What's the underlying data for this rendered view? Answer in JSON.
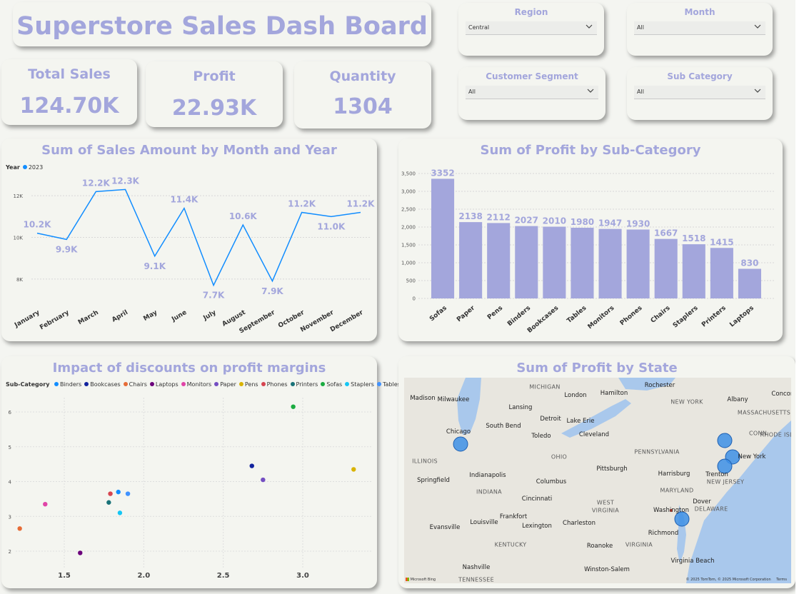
{
  "dashboard": {
    "title": "Superstore Sales Dash Board"
  },
  "kpis": [
    {
      "label": "Total Sales",
      "value": "124.70K"
    },
    {
      "label": "Profit",
      "value": "22.93K"
    },
    {
      "label": "Quantity",
      "value": "1304"
    }
  ],
  "slicers": {
    "region": {
      "label": "Region",
      "value": "Central"
    },
    "month": {
      "label": "Month",
      "value": "All"
    },
    "segment": {
      "label": "Customer Segment",
      "value": "All"
    },
    "subcategory": {
      "label": "Sub Category",
      "value": "All"
    }
  },
  "line_chart": {
    "title": "Sum of Sales Amount by Month and Year",
    "legend_title": "Year",
    "legend_item": "2023"
  },
  "bar_chart": {
    "title": "Sum of Profit by Sub-Category"
  },
  "scatter_chart": {
    "title": "Impact of discounts on profit margins",
    "legend_title": "Sub-Category"
  },
  "map": {
    "title": "Sum of Profit by State",
    "attribution": "© 2025 TomTom, © 2025 Microsoft Corporation",
    "terms": "Terms",
    "bing": "Microsoft Bing",
    "labels": [
      {
        "text": "MICHIGAN",
        "c": [
          763,
          542
        ]
      },
      {
        "text": "Madison",
        "c": [
          592,
          558
        ]
      },
      {
        "text": "Milwaukee",
        "c": [
          635,
          560
        ]
      },
      {
        "text": "London",
        "c": [
          806,
          554
        ]
      },
      {
        "text": "Hamilton",
        "c": [
          860,
          551
        ]
      },
      {
        "text": "Rochester",
        "c": [
          924,
          540
        ]
      },
      {
        "text": "Lansing",
        "c": [
          729,
          571
        ]
      },
      {
        "text": "NEW YORK",
        "c": [
          962,
          563
        ]
      },
      {
        "text": "Albany",
        "c": [
          1033,
          560
        ]
      },
      {
        "text": "Concord",
        "c": [
          1098,
          552
        ]
      },
      {
        "text": "Detroit",
        "c": [
          771,
          587
        ]
      },
      {
        "text": "Lake Erie",
        "c": [
          813,
          590
        ]
      },
      {
        "text": "MASSACHUSETTS",
        "c": [
          1070,
          578
        ]
      },
      {
        "text": "South Bend",
        "c": [
          705,
          597
        ]
      },
      {
        "text": "Chicago",
        "c": [
          642,
          605
        ]
      },
      {
        "text": "Toledo",
        "c": [
          758,
          611
        ]
      },
      {
        "text": "Cleveland",
        "c": [
          832,
          609
        ]
      },
      {
        "text": "CONN.",
        "c": [
          1063,
          607
        ]
      },
      {
        "text": "RHODE ISLAND",
        "c": [
          1097,
          609
        ]
      },
      {
        "text": "OHIO",
        "c": [
          783,
          640
        ]
      },
      {
        "text": "PENNSYLVANIA",
        "c": [
          920,
          633
        ]
      },
      {
        "text": "ILLINOIS",
        "c": [
          595,
          646
        ]
      },
      {
        "text": "New York",
        "c": [
          1053,
          640
        ]
      },
      {
        "text": "Pittsburgh",
        "c": [
          857,
          657
        ]
      },
      {
        "text": "Indianapolis",
        "c": [
          683,
          666
        ]
      },
      {
        "text": "Harrisburg",
        "c": [
          944,
          664
        ]
      },
      {
        "text": "Trenton",
        "c": [
          1004,
          665
        ]
      },
      {
        "text": "Springfield",
        "c": [
          607,
          673
        ]
      },
      {
        "text": "Columbus",
        "c": [
          772,
          675
        ]
      },
      {
        "text": "NEW JERSEY",
        "c": [
          1016,
          675
        ]
      },
      {
        "text": "INDIANA",
        "c": [
          685,
          689
        ]
      },
      {
        "text": "MARYLAND",
        "c": [
          948,
          687
        ]
      },
      {
        "text": "Cincinnati",
        "c": [
          752,
          699
        ]
      },
      {
        "text": "Dover",
        "c": [
          983,
          703
        ]
      },
      {
        "text": "WEST",
        "c": [
          848,
          704
        ]
      },
      {
        "text": "VIRGINIA",
        "c": [
          848,
          715
        ]
      },
      {
        "text": "Washington",
        "c": [
          940,
          715
        ]
      },
      {
        "text": "DELAWARE",
        "c": [
          996,
          713
        ]
      },
      {
        "text": "Frankfort",
        "c": [
          719,
          724
        ]
      },
      {
        "text": "Louisville",
        "c": [
          678,
          732
        ]
      },
      {
        "text": "Lexington",
        "c": [
          752,
          737
        ]
      },
      {
        "text": "Charleston",
        "c": [
          811,
          733
        ]
      },
      {
        "text": "Evansville",
        "c": [
          623,
          739
        ]
      },
      {
        "text": "Richmond",
        "c": [
          929,
          747
        ]
      },
      {
        "text": "KENTUCKY",
        "c": [
          715,
          763
        ]
      },
      {
        "text": "Roanoke",
        "c": [
          840,
          765
        ]
      },
      {
        "text": "VIRGINIA",
        "c": [
          895,
          763
        ]
      },
      {
        "text": "Virginia Beach",
        "c": [
          970,
          786
        ]
      },
      {
        "text": "Nashville",
        "c": [
          667,
          795
        ]
      },
      {
        "text": "Winston-Salem",
        "c": [
          850,
          798
        ]
      },
      {
        "text": "TENNESSEE",
        "c": [
          667,
          812
        ]
      }
    ]
  },
  "chart_data": [
    {
      "type": "line",
      "title": "Sum of Sales Amount by Month and Year",
      "categories": [
        "January",
        "February",
        "March",
        "April",
        "May",
        "June",
        "July",
        "August",
        "September",
        "October",
        "November",
        "December"
      ],
      "series": [
        {
          "name": "2023",
          "values": [
            10.2,
            9.9,
            12.2,
            12.3,
            9.1,
            11.4,
            7.7,
            10.6,
            7.9,
            11.2,
            11.0,
            11.2
          ],
          "labels": [
            "10.2K",
            "9.9K",
            "12.2K",
            "12.3K",
            "9.1K",
            "11.4K",
            "7.7K",
            "10.6K",
            "7.9K",
            "11.2K",
            "11.0K",
            "11.2K"
          ]
        }
      ],
      "yticks": [
        "8K",
        "10K",
        "12K"
      ],
      "ylim": [
        7,
        13
      ],
      "grid": true,
      "color": "#118dff"
    },
    {
      "type": "bar",
      "title": "Sum of Profit by Sub-Category",
      "categories": [
        "Sofas",
        "Paper",
        "Pens",
        "Binders",
        "Bookcases",
        "Tables",
        "Monitors",
        "Phones",
        "Chairs",
        "Staplers",
        "Printers",
        "Laptops"
      ],
      "values": [
        3352,
        2138,
        2112,
        2027,
        2010,
        1980,
        1947,
        1930,
        1667,
        1518,
        1415,
        830
      ],
      "yticks": [
        "0",
        "500",
        "1,000",
        "1,500",
        "2,000",
        "2,500",
        "3,000",
        "3,500"
      ],
      "ylim": [
        0,
        3500
      ],
      "grid": true,
      "color": "#a3a6dc"
    },
    {
      "type": "scatter",
      "title": "Impact of discounts on profit margins",
      "series": [
        {
          "name": "Binders",
          "color": "#118dff",
          "points": [
            [
              1.84,
              3.7
            ]
          ]
        },
        {
          "name": "Bookcases",
          "color": "#12239e",
          "points": [
            [
              2.68,
              4.45
            ]
          ]
        },
        {
          "name": "Chairs",
          "color": "#e66c37",
          "points": [
            [
              1.22,
              2.65
            ]
          ]
        },
        {
          "name": "Laptops",
          "color": "#6b007b",
          "points": [
            [
              1.6,
              1.95
            ]
          ]
        },
        {
          "name": "Monitors",
          "color": "#e044a7",
          "points": [
            [
              1.38,
              3.35
            ]
          ]
        },
        {
          "name": "Paper",
          "color": "#744ec2",
          "points": [
            [
              2.75,
              4.05
            ]
          ]
        },
        {
          "name": "Pens",
          "color": "#d9b300",
          "points": [
            [
              3.32,
              4.35
            ]
          ]
        },
        {
          "name": "Phones",
          "color": "#d64550",
          "points": [
            [
              1.79,
              3.65
            ]
          ]
        },
        {
          "name": "Printers",
          "color": "#197278",
          "points": [
            [
              1.78,
              3.4
            ]
          ]
        },
        {
          "name": "Sofas",
          "color": "#1aab40",
          "points": [
            [
              2.94,
              6.15
            ]
          ]
        },
        {
          "name": "Staplers",
          "color": "#15c6f4",
          "points": [
            [
              1.85,
              3.1
            ]
          ]
        },
        {
          "name": "Tables",
          "color": "#4092ff",
          "points": [
            [
              1.9,
              3.65
            ]
          ]
        }
      ],
      "xticks": [
        "1.5",
        "2.0",
        "2.5",
        "3.0"
      ],
      "yticks": [
        "2",
        "3",
        "4",
        "5",
        "6"
      ],
      "xlim": [
        1.1,
        3.5
      ],
      "ylim": [
        1.7,
        6.4
      ],
      "grid": true
    }
  ]
}
